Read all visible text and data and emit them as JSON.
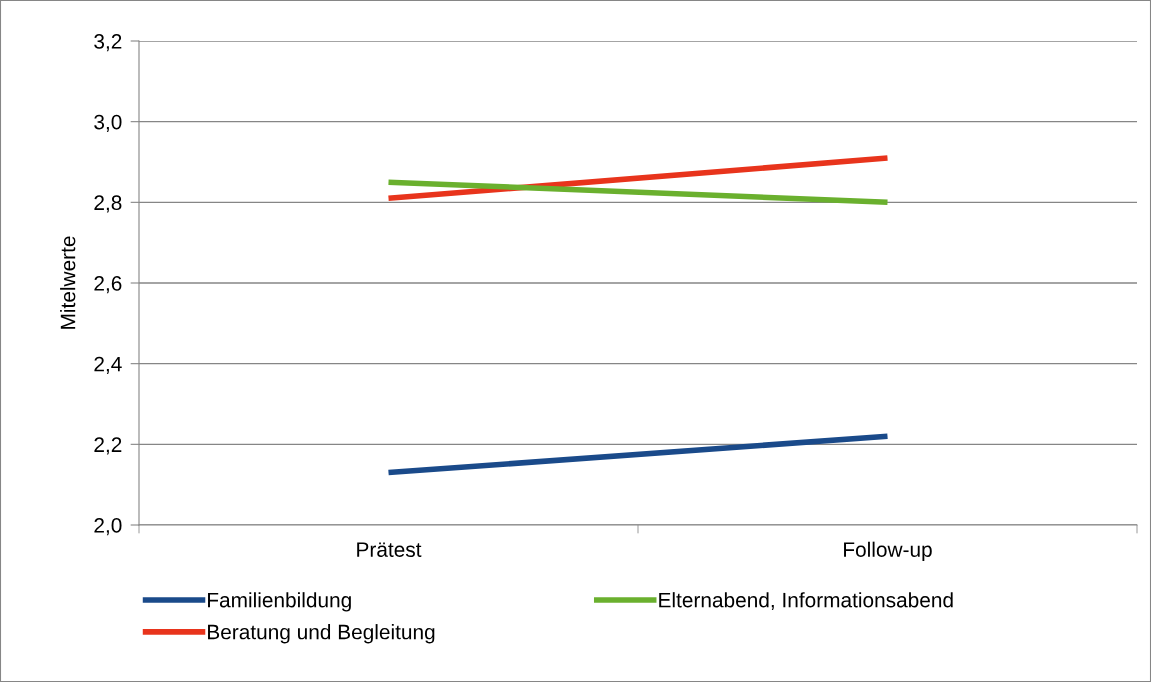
{
  "chart_data": {
    "type": "line",
    "ylabel": "Mitelwerte",
    "categories": [
      "Prätest",
      "Follow-up"
    ],
    "series": [
      {
        "name": "Familienbildung",
        "color": "#1a4a8a",
        "values": [
          2.13,
          2.22
        ]
      },
      {
        "name": "Beratung und Begleitung",
        "color": "#e8341c",
        "values": [
          2.81,
          2.91
        ]
      },
      {
        "name": "Elternabend, Informationsabend",
        "color": "#6ab02e",
        "values": [
          2.85,
          2.8
        ]
      }
    ],
    "ylim": [
      2.0,
      3.2
    ],
    "yticks": [
      {
        "value": 2.0,
        "label": "2,0"
      },
      {
        "value": 2.2,
        "label": "2,2"
      },
      {
        "value": 2.4,
        "label": "2,4"
      },
      {
        "value": 2.6,
        "label": "2,6"
      },
      {
        "value": 2.8,
        "label": "2,8"
      },
      {
        "value": 3.0,
        "label": "3,0"
      },
      {
        "value": 3.2,
        "label": "3,2"
      }
    ],
    "grid": "y",
    "legend": "bottom",
    "marker": "none",
    "line_style": "solid"
  }
}
